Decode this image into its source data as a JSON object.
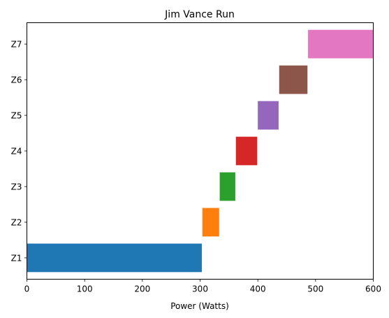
{
  "chart_data": {
    "type": "bar",
    "orientation": "horizontal",
    "title": "Jim Vance Run",
    "xlabel": "Power (Watts)",
    "ylabel": "",
    "xlim": [
      0,
      600
    ],
    "xticks": [
      "0",
      "100",
      "200",
      "300",
      "400",
      "500",
      "600"
    ],
    "grid": false,
    "bars": [
      {
        "category": "Z1",
        "start": 0,
        "end": 303,
        "color": "#1f77b4"
      },
      {
        "category": "Z2",
        "start": 304,
        "end": 333,
        "color": "#ff7f0e"
      },
      {
        "category": "Z3",
        "start": 334,
        "end": 361,
        "color": "#2ca02c"
      },
      {
        "category": "Z4",
        "start": 362,
        "end": 399,
        "color": "#d62728"
      },
      {
        "category": "Z5",
        "start": 400,
        "end": 436,
        "color": "#9467bd"
      },
      {
        "category": "Z6",
        "start": 437,
        "end": 486,
        "color": "#8c564b"
      },
      {
        "category": "Z7",
        "start": 487,
        "end": 600,
        "color": "#e377c2"
      }
    ]
  }
}
